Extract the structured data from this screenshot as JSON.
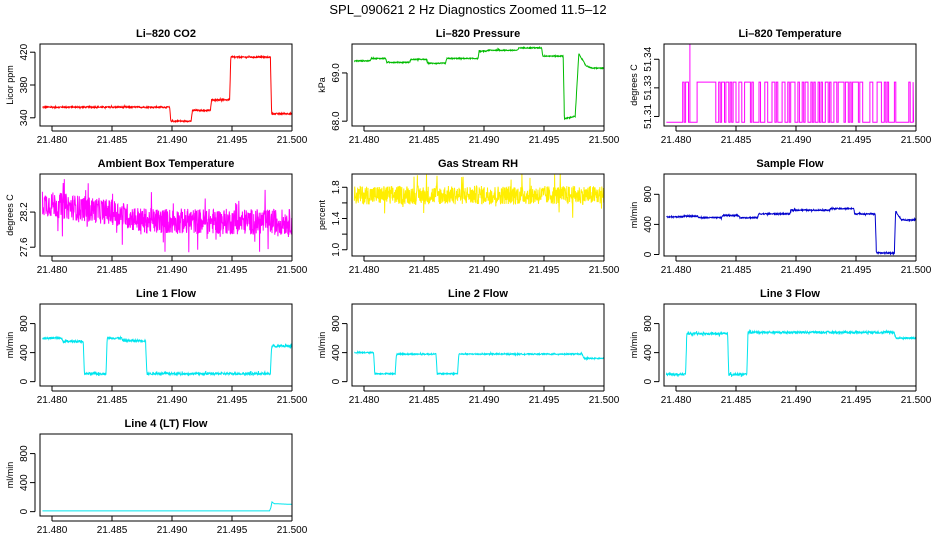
{
  "figure_title": "SPL_090621 2 Hz Diagnostics Zoomed 11.5–12",
  "chart_data": [
    {
      "type": "line",
      "title": "Li–820 CO2",
      "ylabel": "Licor ppm",
      "color": "#ff0000",
      "xlim": [
        21.479,
        21.5
      ],
      "ylim": [
        330,
        430
      ],
      "xticks": [
        21.48,
        21.485,
        21.49,
        21.495,
        21.5
      ],
      "xtick_labels": [
        "21.480",
        "21.485",
        "21.490",
        "21.495",
        "21.500"
      ],
      "yticks": [
        340,
        380,
        420
      ],
      "ytick_labels": [
        "340",
        "380",
        "420"
      ],
      "noise": 0.8,
      "x": [
        21.4792,
        21.4898,
        21.4899,
        21.4916,
        21.4917,
        21.4932,
        21.4933,
        21.4948,
        21.4949,
        21.4982,
        21.4983,
        21.5
      ],
      "y": [
        353,
        353,
        336,
        336,
        349,
        349,
        362,
        362,
        414,
        414,
        345,
        345
      ]
    },
    {
      "type": "line",
      "title": "Li–820 Pressure",
      "ylabel": "kPa",
      "color": "#00bb00",
      "xlim": [
        21.479,
        21.5
      ],
      "ylim": [
        67.9,
        69.6
      ],
      "xticks": [
        21.48,
        21.485,
        21.49,
        21.495,
        21.5
      ],
      "xtick_labels": [
        "21.480",
        "21.485",
        "21.490",
        "21.495",
        "21.500"
      ],
      "yticks": [
        68.0,
        69.0
      ],
      "ytick_labels": [
        "68.0",
        "69.0"
      ],
      "noise": 0.01,
      "x": [
        21.4792,
        21.4805,
        21.4806,
        21.4818,
        21.4819,
        21.4838,
        21.4839,
        21.4852,
        21.4853,
        21.4868,
        21.4869,
        21.4895,
        21.4896,
        21.4902,
        21.4903,
        21.4928,
        21.4929,
        21.4948,
        21.4949,
        21.4966,
        21.4967,
        21.4976,
        21.4979,
        21.4985,
        21.499,
        21.5
      ],
      "y": [
        69.25,
        69.25,
        69.3,
        69.3,
        69.22,
        69.22,
        69.28,
        69.28,
        69.2,
        69.2,
        69.3,
        69.3,
        69.45,
        69.45,
        69.47,
        69.47,
        69.52,
        69.52,
        69.35,
        69.35,
        68.05,
        68.1,
        69.4,
        69.15,
        69.1,
        69.1
      ]
    },
    {
      "type": "line",
      "title": "Li–820 Temperature",
      "ylabel": "degrees C",
      "color": "#ff00ff",
      "xlim": [
        21.479,
        21.5
      ],
      "ylim": [
        51.305,
        51.348
      ],
      "xticks": [
        21.48,
        21.485,
        21.49,
        21.495,
        21.5
      ],
      "xtick_labels": [
        "21.480",
        "21.485",
        "21.490",
        "21.495",
        "21.500"
      ],
      "yticks": [
        51.31,
        51.325,
        51.34
      ],
      "ytick_labels": [
        "51.31",
        "51.33",
        "51.34"
      ],
      "noise": 0,
      "base": 51.307,
      "high": 51.328,
      "spike_x": 21.4812,
      "spike_y": 51.348,
      "switch_start": 21.4802,
      "switch_end": 21.4998,
      "dense_from": 21.4829,
      "dense_to": 21.4948
    },
    {
      "type": "line",
      "title": "Ambient Box Temperature",
      "ylabel": "degrees C",
      "color": "#ff00ff",
      "xlim": [
        21.479,
        21.5
      ],
      "ylim": [
        27.45,
        28.85
      ],
      "xticks": [
        21.48,
        21.485,
        21.49,
        21.495,
        21.5
      ],
      "xtick_labels": [
        "21.480",
        "21.485",
        "21.490",
        "21.495",
        "21.500"
      ],
      "yticks": [
        27.6,
        28.2
      ],
      "ytick_labels": [
        "27.6",
        "28.2"
      ],
      "noise": 0.22,
      "x": [
        21.4792,
        21.4855,
        21.4875,
        21.5
      ],
      "y": [
        28.35,
        28.18,
        28.05,
        28.03
      ]
    },
    {
      "type": "line",
      "title": "Gas Stream RH",
      "ylabel": "percent",
      "color": "#ffee00",
      "xlim": [
        21.479,
        21.5
      ],
      "ylim": [
        0.92,
        1.97
      ],
      "xticks": [
        21.48,
        21.485,
        21.49,
        21.495,
        21.5
      ],
      "xtick_labels": [
        "21.480",
        "21.485",
        "21.490",
        "21.495",
        "21.500"
      ],
      "yticks": [
        1.0,
        1.4,
        1.8
      ],
      "ytick_labels": [
        "1.0",
        "1.4",
        "1.8"
      ],
      "ytick_minor": [
        1.2,
        1.6
      ],
      "noise": 0.12,
      "x": [
        21.4792,
        21.5
      ],
      "y": [
        1.7,
        1.7
      ]
    },
    {
      "type": "line",
      "title": "Sample Flow",
      "ylabel": "ml/min",
      "color": "#0000cc",
      "xlim": [
        21.479,
        21.5
      ],
      "ylim": [
        -20,
        1070
      ],
      "xticks": [
        21.48,
        21.485,
        21.49,
        21.495,
        21.5
      ],
      "xtick_labels": [
        "21.480",
        "21.485",
        "21.490",
        "21.495",
        "21.500"
      ],
      "yticks": [
        0,
        400,
        800
      ],
      "ytick_labels": [
        "0",
        "400",
        "800"
      ],
      "noise": 8,
      "x": [
        21.4792,
        21.4805,
        21.4806,
        21.4818,
        21.4819,
        21.4838,
        21.4839,
        21.4852,
        21.4853,
        21.4868,
        21.4869,
        21.4895,
        21.4896,
        21.4928,
        21.4929,
        21.4948,
        21.4949,
        21.4966,
        21.4967,
        21.4982,
        21.4983,
        21.4985,
        21.4988,
        21.5
      ],
      "y": [
        500,
        500,
        510,
        510,
        490,
        490,
        520,
        520,
        490,
        490,
        540,
        540,
        590,
        590,
        610,
        610,
        540,
        540,
        20,
        20,
        580,
        520,
        460,
        460
      ]
    },
    {
      "type": "line",
      "title": "Line 1 Flow",
      "ylabel": "ml/min",
      "color": "#00e5ee",
      "xlim": [
        21.479,
        21.5
      ],
      "ylim": [
        -60,
        1070
      ],
      "xticks": [
        21.48,
        21.485,
        21.49,
        21.495,
        21.5
      ],
      "xtick_labels": [
        "21.480",
        "21.485",
        "21.490",
        "21.495",
        "21.500"
      ],
      "yticks": [
        0,
        400,
        800
      ],
      "ytick_labels": [
        "0",
        "400",
        "800"
      ],
      "noise": 15,
      "x": [
        21.4792,
        21.4808,
        21.4809,
        21.4826,
        21.4827,
        21.4845,
        21.4846,
        21.4858,
        21.4859,
        21.4878,
        21.4879,
        21.4982,
        21.4983,
        21.5
      ],
      "y": [
        600,
        600,
        555,
        555,
        110,
        110,
        600,
        600,
        565,
        565,
        110,
        110,
        490,
        490
      ]
    },
    {
      "type": "line",
      "title": "Line 2 Flow",
      "ylabel": "ml/min",
      "color": "#00e5ee",
      "xlim": [
        21.479,
        21.5
      ],
      "ylim": [
        -60,
        1070
      ],
      "xticks": [
        21.48,
        21.485,
        21.49,
        21.495,
        21.5
      ],
      "xtick_labels": [
        "21.480",
        "21.485",
        "21.490",
        "21.495",
        "21.500"
      ],
      "yticks": [
        0,
        400,
        800
      ],
      "ytick_labels": [
        "0",
        "400",
        "800"
      ],
      "noise": 8,
      "x": [
        21.4792,
        21.4808,
        21.4809,
        21.4826,
        21.4827,
        21.486,
        21.4861,
        21.4878,
        21.4879,
        21.4982,
        21.4983,
        21.5
      ],
      "y": [
        400,
        400,
        110,
        110,
        380,
        380,
        110,
        110,
        380,
        380,
        320,
        320
      ]
    },
    {
      "type": "line",
      "title": "Line 3 Flow",
      "ylabel": "ml/min",
      "color": "#00e5ee",
      "xlim": [
        21.479,
        21.5
      ],
      "ylim": [
        -60,
        1070
      ],
      "xticks": [
        21.48,
        21.485,
        21.49,
        21.495,
        21.5
      ],
      "xtick_labels": [
        "21.480",
        "21.485",
        "21.490",
        "21.495",
        "21.500"
      ],
      "yticks": [
        0,
        400,
        800
      ],
      "ytick_labels": [
        "0",
        "400",
        "800"
      ],
      "noise": 15,
      "x": [
        21.4792,
        21.4808,
        21.4809,
        21.4843,
        21.4844,
        21.4859,
        21.486,
        21.4982,
        21.4983,
        21.5
      ],
      "y": [
        100,
        100,
        660,
        660,
        100,
        100,
        680,
        680,
        600,
        600
      ]
    },
    {
      "type": "line",
      "title": "Line 4 (LT) Flow",
      "ylabel": "ml/min",
      "color": "#00e5ee",
      "xlim": [
        21.479,
        21.5
      ],
      "ylim": [
        -60,
        1070
      ],
      "xticks": [
        21.48,
        21.485,
        21.49,
        21.495,
        21.5
      ],
      "xtick_labels": [
        "21.480",
        "21.485",
        "21.490",
        "21.495",
        "21.500"
      ],
      "yticks": [
        0,
        400,
        800
      ],
      "ytick_labels": [
        "0",
        "400",
        "800"
      ],
      "noise": 0,
      "x": [
        21.4792,
        21.4982,
        21.4983,
        21.4985,
        21.5
      ],
      "y": [
        10,
        10,
        140,
        110,
        100
      ]
    }
  ]
}
